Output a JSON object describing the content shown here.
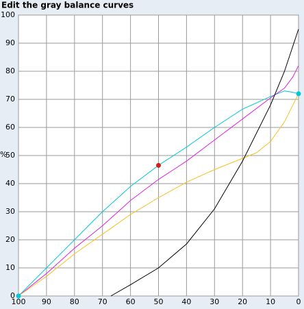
{
  "chart_data": {
    "type": "line",
    "title": "Edit the gray balance curves",
    "y_label": "%",
    "xlim": [
      100,
      0
    ],
    "ylim": [
      0,
      100
    ],
    "xticks": [
      100,
      90,
      80,
      70,
      60,
      50,
      40,
      30,
      20,
      10,
      0
    ],
    "yticks": [
      0,
      10,
      20,
      30,
      40,
      50,
      60,
      70,
      80,
      90,
      100
    ],
    "grid": true,
    "series": [
      {
        "color": "#00c8d8",
        "x": [
          100,
          90,
          80,
          70,
          60,
          50,
          40,
          30,
          20,
          10,
          5,
          2,
          0
        ],
        "values": [
          0,
          10,
          20,
          30,
          39,
          46.5,
          53,
          60,
          66.5,
          71,
          73,
          72.5,
          72
        ]
      },
      {
        "color": "#e020e0",
        "x": [
          100,
          90,
          80,
          70,
          60,
          50,
          40,
          30,
          20,
          10,
          5,
          2,
          0
        ],
        "values": [
          0,
          8,
          17,
          25,
          34,
          41.5,
          48,
          55.5,
          63,
          70.5,
          74,
          78,
          82
        ]
      },
      {
        "color": "#f8c020",
        "x": [
          100,
          90,
          80,
          70,
          60,
          50,
          40,
          30,
          20,
          15,
          10,
          5,
          2,
          0
        ],
        "values": [
          0,
          7,
          15,
          22,
          29,
          35,
          40.5,
          45,
          49,
          51,
          55,
          62,
          68,
          72
        ]
      },
      {
        "color": "#000000",
        "x": [
          67,
          60,
          50,
          40,
          30,
          20,
          10,
          5,
          0
        ],
        "values": [
          0,
          4,
          10,
          18.5,
          31,
          48,
          68,
          80,
          95
        ]
      }
    ],
    "control_points": {
      "x": [
        100,
        50,
        0
      ],
      "values": [
        0,
        46.5,
        72
      ],
      "colors": [
        "#00c8d8",
        "#d02020",
        "#00c8d8"
      ]
    }
  }
}
